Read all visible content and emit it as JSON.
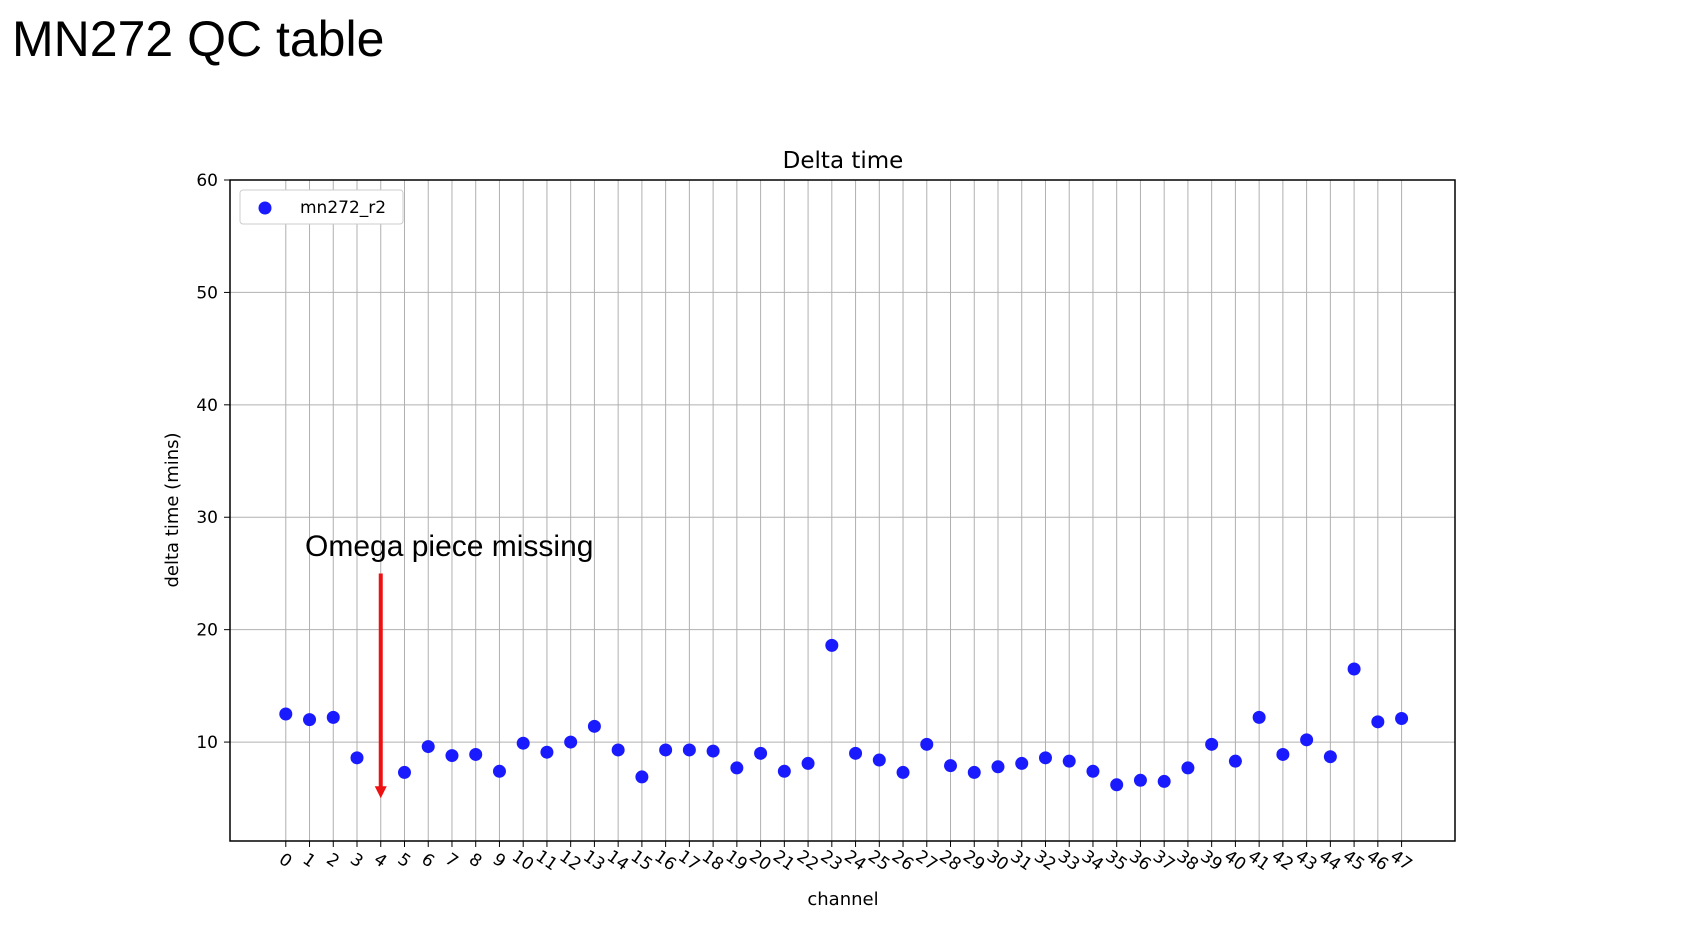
{
  "slide": {
    "title": "MN272 QC table"
  },
  "chart_data": {
    "type": "scatter",
    "title": "Delta time",
    "xlabel": "channel",
    "ylabel": "delta time (mins)",
    "x": [
      0,
      1,
      2,
      3,
      4,
      5,
      6,
      7,
      8,
      9,
      10,
      11,
      12,
      13,
      14,
      15,
      16,
      17,
      18,
      19,
      20,
      21,
      22,
      23,
      24,
      25,
      26,
      27,
      28,
      29,
      30,
      31,
      32,
      33,
      34,
      35,
      36,
      37,
      38,
      39,
      40,
      41,
      42,
      43,
      44,
      45,
      46,
      47
    ],
    "x_tick_labels": [
      "0",
      "1",
      "2",
      "3",
      "4",
      "5",
      "6",
      "7",
      "8",
      "9",
      "10",
      "11",
      "12",
      "13",
      "14",
      "15",
      "16",
      "17",
      "18",
      "19",
      "20",
      "21",
      "22",
      "23",
      "24",
      "25",
      "26",
      "27",
      "28",
      "29",
      "30",
      "31",
      "32",
      "33",
      "34",
      "35",
      "36",
      "37",
      "38",
      "39",
      "40",
      "41",
      "42",
      "43",
      "44",
      "45",
      "46",
      "47"
    ],
    "series": [
      {
        "name": "mn272_r2",
        "color": "#1a1aff",
        "points": [
          [
            0,
            12.5
          ],
          [
            1,
            12.0
          ],
          [
            2,
            12.2
          ],
          [
            3,
            8.6
          ],
          [
            5,
            7.3
          ],
          [
            6,
            9.6
          ],
          [
            7,
            8.8
          ],
          [
            8,
            8.9
          ],
          [
            9,
            7.4
          ],
          [
            10,
            9.9
          ],
          [
            11,
            9.1
          ],
          [
            12,
            10.0
          ],
          [
            13,
            11.4
          ],
          [
            14,
            9.3
          ],
          [
            15,
            6.9
          ],
          [
            16,
            9.3
          ],
          [
            17,
            9.3
          ],
          [
            18,
            9.2
          ],
          [
            19,
            7.7
          ],
          [
            20,
            9.0
          ],
          [
            21,
            7.4
          ],
          [
            22,
            8.1
          ],
          [
            23,
            18.6
          ],
          [
            24,
            9.0
          ],
          [
            25,
            8.4
          ],
          [
            26,
            7.3
          ],
          [
            27,
            9.8
          ],
          [
            28,
            7.9
          ],
          [
            29,
            7.3
          ],
          [
            30,
            7.8
          ],
          [
            31,
            8.1
          ],
          [
            32,
            8.6
          ],
          [
            33,
            8.3
          ],
          [
            34,
            7.4
          ],
          [
            35,
            6.2
          ],
          [
            36,
            6.6
          ],
          [
            37,
            6.5
          ],
          [
            38,
            7.7
          ],
          [
            39,
            9.8
          ],
          [
            40,
            8.3
          ],
          [
            41,
            12.2
          ],
          [
            42,
            8.9
          ],
          [
            43,
            10.2
          ],
          [
            44,
            8.7
          ],
          [
            45,
            16.5
          ],
          [
            46,
            11.8
          ],
          [
            47,
            12.1
          ]
        ]
      }
    ],
    "yticks": [
      10,
      20,
      30,
      40,
      50,
      60
    ],
    "ylim": [
      1.2,
      60
    ],
    "xlim": [
      -2.35,
      49.25
    ],
    "grid": true,
    "legend_position": "upper-left",
    "annotation": {
      "text": "Omega piece missing",
      "target_x": 4,
      "arrow_from_y": 25.0,
      "arrow_to_y": 5.0,
      "arrow_color": "#ee1111"
    }
  }
}
